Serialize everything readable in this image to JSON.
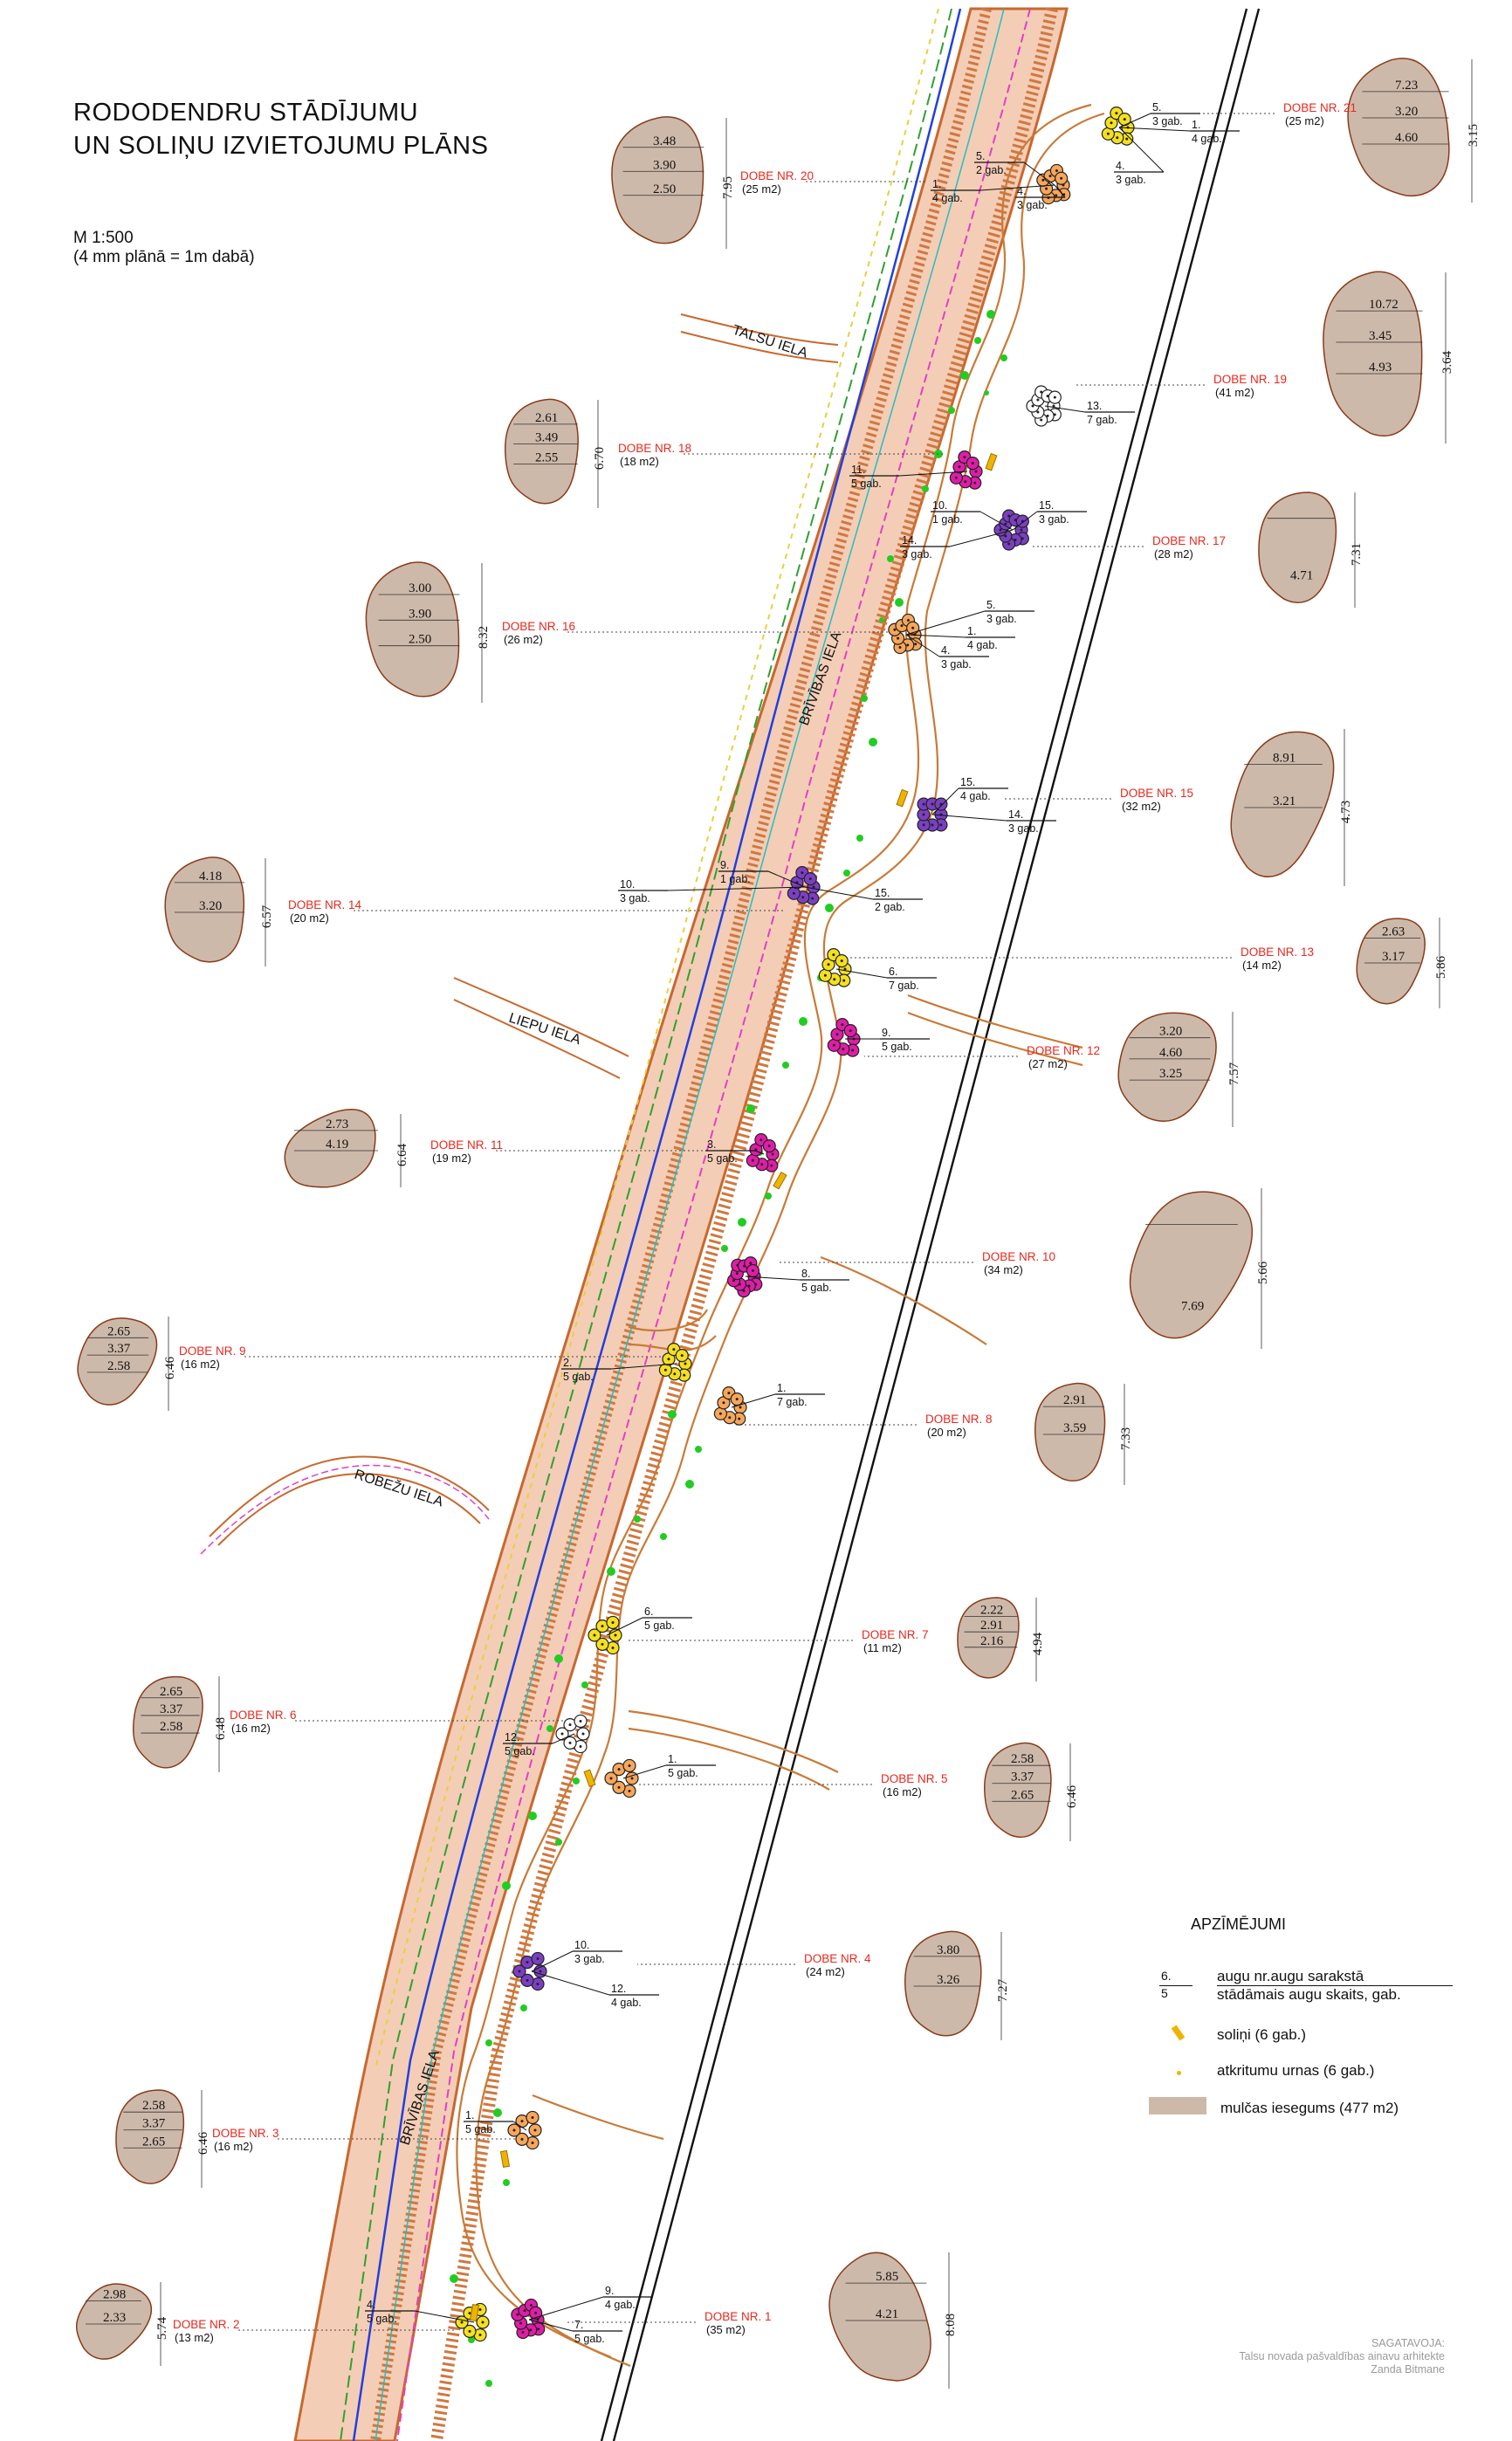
{
  "title": {
    "line1": "RODODENDRU STĀDĪJUMU",
    "line2": "UN SOLIŅU IZVIETOJUMU PLĀNS"
  },
  "scale": {
    "ratio": "M 1:500",
    "note": "(4 mm plānā = 1m dabā)"
  },
  "colors": {
    "road_band": "#e9a07a",
    "road_outline": "#c8682e",
    "path": "#c97a36",
    "mulch_fill": "#cdb9aa",
    "mulch_stroke": "#8a3a18",
    "label_red": "#e8281e",
    "utility_magenta": "#e040c8",
    "utility_blue": "#2040e0",
    "utility_green": "#30a030",
    "utility_cyan": "#20c0c0",
    "tree_green": "#22cc22",
    "bench_yellow": "#f0b400",
    "plant_orange": "#f7a65a",
    "plant_yellow": "#f5e01e",
    "plant_purple": "#7b3fc4",
    "plant_magenta": "#e01ca8",
    "plant_white": "#ffffff"
  },
  "street_labels": [
    {
      "id": "talsu",
      "text": "TALSU IELA"
    },
    {
      "id": "brivibas_top",
      "text": "BRĪVĪBAS IELA"
    },
    {
      "id": "liepu",
      "text": "LIEPU IELA"
    },
    {
      "id": "robezu",
      "text": "ROBEŽU IELA"
    },
    {
      "id": "brivibas_bottom",
      "text": "BRĪVĪBAS IELA"
    }
  ],
  "beds": [
    {
      "id": 21,
      "name": "DOBE NR. 21",
      "area": "(25  m2)",
      "dims": [
        "7.23",
        "3.20",
        "4.60",
        "3.15"
      ]
    },
    {
      "id": 20,
      "name": "DOBE NR. 20",
      "area": "(25  m2)",
      "dims": [
        "3.48",
        "3.90",
        "2.50",
        "7.95"
      ]
    },
    {
      "id": 19,
      "name": "DOBE NR. 19",
      "area": "(41  m2)",
      "dims": [
        "10.72",
        "3.45",
        "4.93",
        "3.64"
      ]
    },
    {
      "id": 18,
      "name": "DOBE NR. 18",
      "area": "(18  m2)",
      "dims": [
        "2.61",
        "3.49",
        "2.55",
        "6.70"
      ]
    },
    {
      "id": 17,
      "name": "DOBE NR. 17",
      "area": "(28  m2)",
      "dims": [
        "7.31",
        "4.71"
      ]
    },
    {
      "id": 16,
      "name": "DOBE NR. 16",
      "area": "(26  m2)",
      "dims": [
        "3.00",
        "3.90",
        "2.50",
        "8.32"
      ]
    },
    {
      "id": 15,
      "name": "DOBE NR. 15",
      "area": "(32  m2)",
      "dims": [
        "8.91",
        "3.21",
        "4.73"
      ]
    },
    {
      "id": 14,
      "name": "DOBE NR. 14",
      "area": "(20  m2)",
      "dims": [
        "4.18",
        "3.20",
        "6.57"
      ]
    },
    {
      "id": 13,
      "name": "DOBE NR. 13",
      "area": "(14  m2)",
      "dims": [
        "2.63",
        "3.17",
        "5.86"
      ]
    },
    {
      "id": 12,
      "name": "DOBE NR. 12",
      "area": "(27  m2)",
      "dims": [
        "3.20",
        "4.60",
        "3.25",
        "7.57"
      ]
    },
    {
      "id": 11,
      "name": "DOBE NR. 11",
      "area": "(19  m2)",
      "dims": [
        "2.73",
        "4.19",
        "6.64"
      ]
    },
    {
      "id": 10,
      "name": "DOBE NR. 10",
      "area": "(34  m2)",
      "dims": [
        "5.66",
        "7.69"
      ]
    },
    {
      "id": 9,
      "name": "DOBE NR. 9",
      "area": "(16  m2)",
      "dims": [
        "2.65",
        "3.37",
        "2.58",
        "6.46"
      ]
    },
    {
      "id": 8,
      "name": "DOBE NR. 8",
      "area": "(20  m2)",
      "dims": [
        "2.91",
        "3.59",
        "7.33"
      ]
    },
    {
      "id": 7,
      "name": "DOBE NR. 7",
      "area": "(11  m2)",
      "dims": [
        "2.22",
        "2.91",
        "2.16",
        "4.94"
      ]
    },
    {
      "id": 6,
      "name": "DOBE NR. 6",
      "area": "(16  m2)",
      "dims": [
        "2.65",
        "3.37",
        "2.58",
        "6.48"
      ]
    },
    {
      "id": 5,
      "name": "DOBE NR. 5",
      "area": "(16  m2)",
      "dims": [
        "2.58",
        "3.37",
        "2.65",
        "6.46"
      ]
    },
    {
      "id": 4,
      "name": "DOBE NR. 4",
      "area": "(24  m2)",
      "dims": [
        "3.80",
        "3.26",
        "7.27"
      ]
    },
    {
      "id": 3,
      "name": "DOBE NR. 3",
      "area": "(16  m2)",
      "dims": [
        "2.58",
        "3.37",
        "2.65",
        "6.46"
      ]
    },
    {
      "id": 2,
      "name": "DOBE NR. 2",
      "area": "(13  m2)",
      "dims": [
        "2.98",
        "2.33",
        "5.74"
      ]
    },
    {
      "id": 1,
      "name": "DOBE NR. 1",
      "area": "(35  m2)",
      "dims": [
        "5.85",
        "4.21",
        "8.08"
      ]
    }
  ],
  "plant_groups": [
    {
      "id": "b21a",
      "num": "5.",
      "count": "3 gab.",
      "color": "yellow"
    },
    {
      "id": "b21b",
      "num": "1.",
      "count": "4 gab.",
      "color": "yellow"
    },
    {
      "id": "b21c",
      "num": "4.",
      "count": "3 gab.",
      "color": "yellow"
    },
    {
      "id": "b20a",
      "num": "5.",
      "count": "2 gab.",
      "color": "orange"
    },
    {
      "id": "b20b",
      "num": "1.",
      "count": "4 gab.",
      "color": "orange"
    },
    {
      "id": "b20c",
      "num": "4.",
      "count": "3 gab.",
      "color": "yellow"
    },
    {
      "id": "b19",
      "num": "13.",
      "count": "7 gab.",
      "color": "white"
    },
    {
      "id": "b18",
      "num": "11.",
      "count": "5 gab.",
      "color": "magenta"
    },
    {
      "id": "b17a",
      "num": "10.",
      "count": "1 gab.",
      "color": "purple"
    },
    {
      "id": "b17b",
      "num": "15.",
      "count": "3 gab.",
      "color": "purple"
    },
    {
      "id": "b17c",
      "num": "14.",
      "count": "3 gab.",
      "color": "purple"
    },
    {
      "id": "b16a",
      "num": "5.",
      "count": "3 gab.",
      "color": "orange"
    },
    {
      "id": "b16b",
      "num": "1.",
      "count": "4 gab.",
      "color": "orange"
    },
    {
      "id": "b16c",
      "num": "4.",
      "count": "3 gab.",
      "color": "yellow"
    },
    {
      "id": "b15a",
      "num": "15.",
      "count": "4 gab.",
      "color": "purple"
    },
    {
      "id": "b15b",
      "num": "14.",
      "count": "3 gab.",
      "color": "purple"
    },
    {
      "id": "b14a",
      "num": "10.",
      "count": "3 gab.",
      "color": "purple"
    },
    {
      "id": "b14b",
      "num": "9.",
      "count": "1 gab.",
      "color": "purple"
    },
    {
      "id": "b14c",
      "num": "15.",
      "count": "2 gab.",
      "color": "purple"
    },
    {
      "id": "b13",
      "num": "6.",
      "count": "7 gab.",
      "color": "yellow"
    },
    {
      "id": "b12",
      "num": "9.",
      "count": "5 gab.",
      "color": "magenta"
    },
    {
      "id": "b11",
      "num": "3.",
      "count": "5 gab.",
      "color": "magenta"
    },
    {
      "id": "b10",
      "num": "8.",
      "count": "5 gab.",
      "color": "magenta"
    },
    {
      "id": "b9",
      "num": "2.",
      "count": "5 gab.",
      "color": "yellow"
    },
    {
      "id": "b8",
      "num": "1.",
      "count": "7 gab.",
      "color": "orange"
    },
    {
      "id": "b7",
      "num": "6.",
      "count": "5 gab.",
      "color": "yellow"
    },
    {
      "id": "b6",
      "num": "12.",
      "count": "5 gab.",
      "color": "white"
    },
    {
      "id": "b5",
      "num": "1.",
      "count": "5 gab.",
      "color": "orange"
    },
    {
      "id": "b4a",
      "num": "10.",
      "count": "3 gab.",
      "color": "purple"
    },
    {
      "id": "b4b",
      "num": "12.",
      "count": "4 gab.",
      "color": "white"
    },
    {
      "id": "b3",
      "num": "1.",
      "count": "5 gab.",
      "color": "orange"
    },
    {
      "id": "b2",
      "num": "4.",
      "count": "5 gab.",
      "color": "yellow"
    },
    {
      "id": "b1a",
      "num": "9.",
      "count": "4 gab.",
      "color": "magenta"
    },
    {
      "id": "b1b",
      "num": "7.",
      "count": "5 gab.",
      "color": "magenta"
    }
  ],
  "legend": {
    "heading": "APZĪMĒJUMI",
    "symbol_num": "6.",
    "symbol_count": "5",
    "item_plants_line1": "augu nr.augu sarakstā",
    "item_plants_line2": "stādāmais augu skaits, gab.",
    "item_benches": "soliņi (6 gab.)",
    "item_bins": "atkritumu urnas (6 gab.)",
    "item_mulch": "mulčas iesegums (477  m2)"
  },
  "credit": {
    "line1": "SAGATAVOJA:",
    "line2": "Talsu novada pašvaldības ainavu arhitekte",
    "line3": "Zanda Bitmane"
  }
}
